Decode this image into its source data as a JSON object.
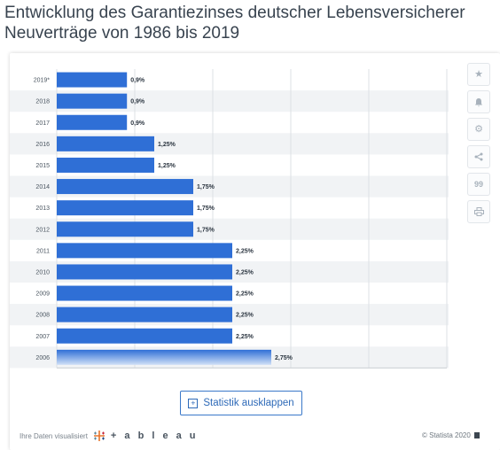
{
  "headline": {
    "line1": "Entwicklung des Garantiezinses deutscher Lebensversicherer",
    "line2": "Neuverträge von 1986 bis 2019"
  },
  "toolbar": {
    "icons": [
      "star-icon",
      "bell-icon",
      "gear-icon",
      "share-icon",
      "quote-icon",
      "print-icon"
    ],
    "glyphs": [
      "★",
      "🔔",
      "⚙",
      "<",
      "99",
      "⎙"
    ]
  },
  "expand_button": {
    "label": "Statistik ausklappen"
  },
  "footer": {
    "credit": "Ihre Daten visualisiert",
    "logo": "+ a b l e a u",
    "copyright": "© Statista 2020"
  },
  "colors": {
    "bar": "#2f6fd6",
    "stripe": "#f1f3f5",
    "grid": "#dde1e5"
  },
  "chart_data": {
    "type": "bar",
    "orientation": "horizontal",
    "categories": [
      "2019*",
      "2018",
      "2017",
      "2016",
      "2015",
      "2014",
      "2013",
      "2012",
      "2011",
      "2010",
      "2009",
      "2008",
      "2007",
      "2006"
    ],
    "values": [
      0.9,
      0.9,
      0.9,
      1.25,
      1.25,
      1.75,
      1.75,
      1.75,
      2.25,
      2.25,
      2.25,
      2.25,
      2.25,
      2.75
    ],
    "data_labels": [
      "0,9%",
      "0,9%",
      "0,9%",
      "1,25%",
      "1,25%",
      "1,75%",
      "1,75%",
      "1,75%",
      "2,25%",
      "2,25%",
      "2,25%",
      "2,25%",
      "2,25%",
      "2,75%"
    ],
    "xlim": [
      0,
      5
    ],
    "grid": true,
    "title": "",
    "xlabel": "",
    "ylabel": ""
  }
}
